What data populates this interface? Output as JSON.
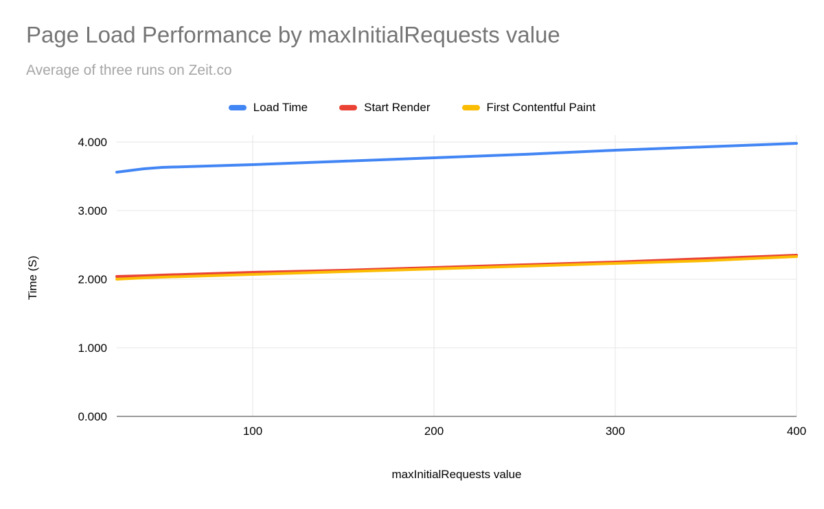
{
  "chart_data": {
    "type": "line",
    "title": "Page Load Performance by maxInitialRequests value",
    "subtitle": "Average of three runs on Zeit.co",
    "xlabel": "maxInitialRequests value",
    "ylabel": "Time (S)",
    "xlim": [
      25,
      400
    ],
    "ylim": [
      0,
      4.1
    ],
    "grid": true,
    "legend_position": "top",
    "grid_color": "#e6e6e6",
    "axis_color": "#333333",
    "x_ticks": [
      100,
      200,
      300,
      400
    ],
    "y_ticks": [
      {
        "value": 0,
        "label": "0.000"
      },
      {
        "value": 1,
        "label": "1.000"
      },
      {
        "value": 2,
        "label": "2.000"
      },
      {
        "value": 3,
        "label": "3.000"
      },
      {
        "value": 4,
        "label": "4.000"
      }
    ],
    "x": [
      25,
      40,
      50,
      100,
      150,
      200,
      250,
      300,
      350,
      400
    ],
    "series": [
      {
        "name": "Load Time",
        "color": "#4285F4",
        "values": [
          3.56,
          3.61,
          3.63,
          3.67,
          3.72,
          3.77,
          3.82,
          3.88,
          3.93,
          3.98
        ]
      },
      {
        "name": "Start Render",
        "color": "#EA4335",
        "values": [
          2.04,
          2.05,
          2.06,
          2.1,
          2.13,
          2.17,
          2.21,
          2.25,
          2.3,
          2.35
        ]
      },
      {
        "name": "First Contentful Paint",
        "color": "#FBBC04",
        "values": [
          2.0,
          2.02,
          2.03,
          2.07,
          2.11,
          2.15,
          2.19,
          2.23,
          2.27,
          2.33
        ]
      }
    ]
  }
}
